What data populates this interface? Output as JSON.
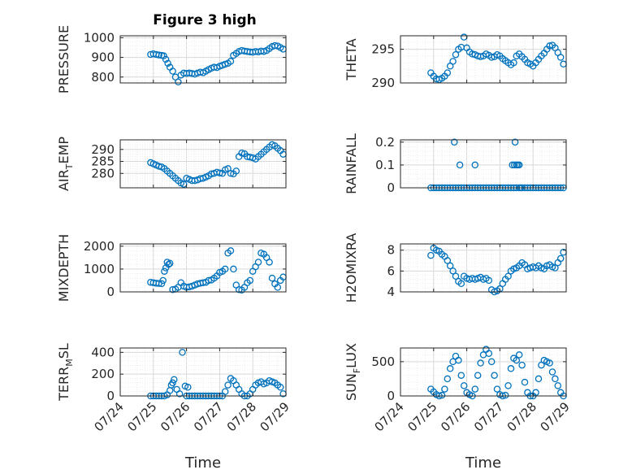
{
  "figure_title": "Figure 3 high",
  "colors": {
    "marker": "#0072BD",
    "axis": "#262626",
    "grid": "#d9d9d9",
    "minor_grid": "#ececec"
  },
  "chart_data": [
    {
      "type": "scatter",
      "ylabel": "PRESSURE",
      "title": "Figure 3 high",
      "xlabel": "",
      "ylim": [
        770,
        1010
      ],
      "yticks": [
        800,
        900,
        1000
      ],
      "ytick_labels": [
        "800",
        "900",
        "1000"
      ],
      "x": [
        "07/24 22:00",
        "07/25 00:00",
        "07/25 02:00",
        "07/25 04:00",
        "07/25 06:00",
        "07/25 07:30",
        "07/25 09:00",
        "07/25 10:30",
        "07/25 12:00",
        "07/25 14:00",
        "07/25 16:00",
        "07/25 18:00",
        "07/25 20:00",
        "07/25 22:00",
        "07/26 00:00",
        "07/26 02:00",
        "07/26 04:00",
        "07/26 06:00",
        "07/26 08:00",
        "07/26 10:00",
        "07/26 12:00",
        "07/26 14:00",
        "07/26 16:00",
        "07/26 18:00",
        "07/26 20:00",
        "07/26 22:00",
        "07/27 00:00",
        "07/27 02:00",
        "07/27 04:00",
        "07/27 06:00",
        "07/27 08:00",
        "07/27 10:00",
        "07/27 12:00",
        "07/27 14:00",
        "07/27 16:00",
        "07/27 18:00",
        "07/27 20:00",
        "07/27 22:00",
        "07/28 00:00",
        "07/28 02:00",
        "07/28 04:00",
        "07/28 06:00",
        "07/28 08:00",
        "07/28 10:00",
        "07/28 12:00",
        "07/28 14:00",
        "07/28 16:00",
        "07/28 18:00",
        "07/28 20:00",
        "07/28 22:00"
      ],
      "y": [
        915,
        918,
        915,
        912,
        910,
        908,
        890,
        870,
        850,
        830,
        800,
        775,
        810,
        820,
        818,
        820,
        818,
        815,
        820,
        825,
        822,
        830,
        838,
        845,
        850,
        848,
        855,
        860,
        865,
        870,
        880,
        910,
        920,
        930,
        935,
        932,
        930,
        928,
        926,
        930,
        928,
        932,
        930,
        935,
        945,
        955,
        960,
        958,
        950,
        942
      ]
    },
    {
      "type": "scatter",
      "ylabel": "THETA",
      "xlabel": "",
      "ylim": [
        290,
        297
      ],
      "yticks": [
        290,
        295
      ],
      "ytick_labels": [
        "290",
        "295"
      ],
      "x": [
        "07/24 22:00",
        "07/25 00:00",
        "07/25 02:00",
        "07/25 04:00",
        "07/25 06:00",
        "07/25 08:00",
        "07/25 10:00",
        "07/25 12:00",
        "07/25 14:00",
        "07/25 16:00",
        "07/25 18:00",
        "07/25 20:00",
        "07/25 22:00",
        "07/26 00:00",
        "07/26 02:00",
        "07/26 04:00",
        "07/26 06:00",
        "07/26 08:00",
        "07/26 10:00",
        "07/26 12:00",
        "07/26 14:00",
        "07/26 16:00",
        "07/26 18:00",
        "07/26 20:00",
        "07/26 22:00",
        "07/27 00:00",
        "07/27 02:00",
        "07/27 04:00",
        "07/27 06:00",
        "07/27 08:00",
        "07/27 10:00",
        "07/27 12:00",
        "07/27 14:00",
        "07/27 16:00",
        "07/27 18:00",
        "07/27 20:00",
        "07/27 22:00",
        "07/28 00:00",
        "07/28 02:00",
        "07/28 04:00",
        "07/28 06:00",
        "07/28 08:00",
        "07/28 10:00",
        "07/28 12:00",
        "07/28 14:00",
        "07/28 16:00",
        "07/28 18:00",
        "07/28 20:00",
        "07/28 22:00"
      ],
      "y": [
        291.5,
        291.0,
        290.6,
        290.5,
        290.7,
        291.0,
        291.5,
        292.5,
        293.2,
        294.2,
        295.0,
        295.3,
        296.8,
        295.2,
        294.6,
        294.3,
        294.2,
        294.0,
        293.9,
        294.0,
        294.3,
        294.1,
        293.8,
        293.9,
        294.2,
        294.0,
        293.6,
        293.3,
        293.0,
        292.7,
        293.0,
        294.0,
        294.3,
        293.9,
        293.5,
        293.0,
        292.8,
        292.5,
        293.0,
        293.5,
        294.0,
        294.4,
        295.0,
        295.5,
        295.6,
        295.2,
        294.5,
        293.8,
        292.8
      ]
    },
    {
      "type": "scatter",
      "ylabel": "AIR_TEMP",
      "ylabel_parts": [
        "AIR",
        "T",
        "EMP"
      ],
      "xlabel": "",
      "ylim": [
        274,
        294
      ],
      "yticks": [
        280,
        285,
        290
      ],
      "ytick_labels": [
        "280",
        "285",
        "290"
      ],
      "x": [
        "07/24 22:00",
        "07/25 00:00",
        "07/25 02:00",
        "07/25 04:00",
        "07/25 06:00",
        "07/25 08:00",
        "07/25 10:00",
        "07/25 12:00",
        "07/25 14:00",
        "07/25 16:00",
        "07/25 18:00",
        "07/25 20:00",
        "07/25 22:00",
        "07/26 00:00",
        "07/26 02:00",
        "07/26 04:00",
        "07/26 06:00",
        "07/26 08:00",
        "07/26 10:00",
        "07/26 12:00",
        "07/26 14:00",
        "07/26 16:00",
        "07/26 18:00",
        "07/26 20:00",
        "07/26 22:00",
        "07/27 00:00",
        "07/27 02:00",
        "07/27 04:00",
        "07/27 06:00",
        "07/27 08:00",
        "07/27 10:00",
        "07/27 12:00",
        "07/27 14:00",
        "07/27 16:00",
        "07/27 18:00",
        "07/27 20:00",
        "07/27 22:00",
        "07/28 00:00",
        "07/28 02:00",
        "07/28 04:00",
        "07/28 06:00",
        "07/28 08:00",
        "07/28 10:00",
        "07/28 12:00",
        "07/28 14:00",
        "07/28 16:00",
        "07/28 18:00",
        "07/28 20:00",
        "07/28 22:00"
      ],
      "y": [
        284.5,
        284.0,
        283.5,
        283.0,
        282.7,
        282.0,
        281.0,
        280.0,
        279.0,
        278.0,
        277.0,
        276.0,
        275.5,
        278.0,
        277.5,
        277.0,
        277.0,
        277.3,
        277.8,
        278.0,
        278.5,
        279.0,
        279.8,
        280.0,
        280.5,
        280.2,
        280.0,
        281.5,
        282.0,
        280.0,
        279.8,
        281.0,
        287.0,
        288.5,
        288.2,
        287.0,
        286.8,
        286.5,
        286.0,
        287.0,
        288.0,
        289.0,
        290.0,
        291.0,
        292.0,
        291.5,
        290.5,
        289.5,
        288.0
      ]
    },
    {
      "type": "scatter",
      "ylabel": "RAINFALL",
      "xlabel": "",
      "ylim": [
        0,
        0.21
      ],
      "yticks": [
        0,
        0.1,
        0.2
      ],
      "ytick_labels": [
        "0",
        "0.1",
        "0.2"
      ],
      "x": [
        "07/24 22:00",
        "07/25 00:00",
        "07/25 02:00",
        "07/25 04:00",
        "07/25 06:00",
        "07/25 08:00",
        "07/25 10:00",
        "07/25 12:00",
        "07/25 14:00",
        "07/25 16:00",
        "07/25 18:00",
        "07/25 20:00",
        "07/25 22:00",
        "07/26 00:00",
        "07/26 02:00",
        "07/26 04:00",
        "07/26 06:00",
        "07/26 08:00",
        "07/26 10:00",
        "07/26 12:00",
        "07/26 14:00",
        "07/26 16:00",
        "07/26 18:00",
        "07/26 20:00",
        "07/26 22:00",
        "07/27 00:00",
        "07/27 02:00",
        "07/27 04:00",
        "07/27 06:00",
        "07/27 08:00",
        "07/27 10:00",
        "07/27 12:00",
        "07/27 14:00",
        "07/27 16:00",
        "07/27 18:00",
        "07/27 20:00",
        "07/27 22:00",
        "07/28 00:00",
        "07/28 02:00",
        "07/28 04:00",
        "07/28 06:00",
        "07/28 08:00",
        "07/28 10:00",
        "07/28 12:00",
        "07/28 14:00",
        "07/28 16:00",
        "07/28 18:00",
        "07/28 20:00",
        "07/28 22:00",
        "07/25 15:00",
        "07/25 19:00",
        "07/26 06:00",
        "07/27 09:00",
        "07/27 10:30",
        "07/27 11:00",
        "07/27 12:00",
        "07/27 13:00",
        "07/27 14:00",
        "07/27 15:00"
      ],
      "y": [
        0,
        0,
        0,
        0,
        0,
        0,
        0,
        0,
        0,
        0,
        0,
        0,
        0,
        0,
        0,
        0,
        0,
        0,
        0,
        0,
        0,
        0,
        0,
        0,
        0,
        0,
        0,
        0,
        0,
        0,
        0,
        0,
        0,
        0,
        0,
        0,
        0,
        0,
        0,
        0,
        0,
        0,
        0,
        0,
        0,
        0,
        0,
        0,
        0,
        0.2,
        0.1,
        0.1,
        0.1,
        0.1,
        0.2,
        0.1,
        0.1,
        0.1,
        0
      ]
    },
    {
      "type": "scatter",
      "ylabel": "MIXDEPTH",
      "xlabel": "",
      "ylim": [
        0,
        2100
      ],
      "yticks": [
        0,
        1000,
        2000
      ],
      "ytick_labels": [
        "0",
        "1000",
        "2000"
      ],
      "x": [
        "07/24 22:00",
        "07/25 00:00",
        "07/25 02:00",
        "07/25 04:00",
        "07/25 06:00",
        "07/25 07:00",
        "07/25 08:00",
        "07/25 09:00",
        "07/25 10:00",
        "07/25 11:00",
        "07/25 12:00",
        "07/25 14:00",
        "07/25 16:00",
        "07/25 18:00",
        "07/25 20:00",
        "07/25 22:00",
        "07/26 00:00",
        "07/26 02:00",
        "07/26 04:00",
        "07/26 06:00",
        "07/26 08:00",
        "07/26 10:00",
        "07/26 12:00",
        "07/26 14:00",
        "07/26 16:00",
        "07/26 18:00",
        "07/26 20:00",
        "07/26 22:00",
        "07/27 00:00",
        "07/27 02:00",
        "07/27 04:00",
        "07/27 06:00",
        "07/27 08:00",
        "07/27 10:00",
        "07/27 12:00",
        "07/27 14:00",
        "07/27 16:00",
        "07/27 18:00",
        "07/27 20:00",
        "07/27 22:00",
        "07/28 00:00",
        "07/28 02:00",
        "07/28 04:00",
        "07/28 06:00",
        "07/28 08:00",
        "07/28 10:00",
        "07/28 12:00",
        "07/28 14:00",
        "07/28 16:00",
        "07/28 18:00",
        "07/28 20:00",
        "07/28 22:00"
      ],
      "y": [
        420,
        400,
        380,
        370,
        360,
        500,
        900,
        1050,
        1300,
        1200,
        1250,
        100,
        120,
        200,
        400,
        250,
        200,
        220,
        250,
        300,
        350,
        380,
        400,
        420,
        500,
        520,
        600,
        700,
        850,
        900,
        1000,
        1700,
        1800,
        1000,
        300,
        100,
        80,
        200,
        400,
        500,
        900,
        1100,
        1300,
        1700,
        1650,
        1500,
        1300,
        600,
        350,
        200,
        500,
        650
      ]
    },
    {
      "type": "scatter",
      "ylabel": "H2OMIXRA",
      "xlabel": "",
      "ylim": [
        4,
        8.6
      ],
      "yticks": [
        4,
        6,
        8
      ],
      "ytick_labels": [
        "4",
        "6",
        "8"
      ],
      "x": [
        "07/24 22:00",
        "07/25 00:00",
        "07/25 02:00",
        "07/25 04:00",
        "07/25 06:00",
        "07/25 08:00",
        "07/25 10:00",
        "07/25 12:00",
        "07/25 14:00",
        "07/25 16:00",
        "07/25 18:00",
        "07/25 20:00",
        "07/25 22:00",
        "07/26 00:00",
        "07/26 02:00",
        "07/26 04:00",
        "07/26 06:00",
        "07/26 08:00",
        "07/26 10:00",
        "07/26 12:00",
        "07/26 14:00",
        "07/26 16:00",
        "07/26 18:00",
        "07/26 20:00",
        "07/26 22:00",
        "07/27 00:00",
        "07/27 02:00",
        "07/27 04:00",
        "07/27 06:00",
        "07/27 08:00",
        "07/27 10:00",
        "07/27 12:00",
        "07/27 14:00",
        "07/27 16:00",
        "07/27 18:00",
        "07/27 20:00",
        "07/27 22:00",
        "07/28 00:00",
        "07/28 02:00",
        "07/28 04:00",
        "07/28 06:00",
        "07/28 08:00",
        "07/28 10:00",
        "07/28 12:00",
        "07/28 14:00",
        "07/28 16:00",
        "07/28 18:00",
        "07/28 20:00",
        "07/28 22:00"
      ],
      "y": [
        7.5,
        8.2,
        8.0,
        7.9,
        7.6,
        7.4,
        7.0,
        6.5,
        6.0,
        5.5,
        5.0,
        4.8,
        5.5,
        5.3,
        5.2,
        5.3,
        5.2,
        5.3,
        5.4,
        5.2,
        5.3,
        5.1,
        4.2,
        4.0,
        4.1,
        4.3,
        4.8,
        5.2,
        5.5,
        6.0,
        6.2,
        6.3,
        6.5,
        6.8,
        6.6,
        6.2,
        6.3,
        6.4,
        6.3,
        6.5,
        6.3,
        6.2,
        6.5,
        6.6,
        6.4,
        6.3,
        6.8,
        7.2,
        7.8
      ]
    },
    {
      "type": "scatter",
      "ylabel": "TERR_MSL",
      "ylabel_parts": [
        "TERR",
        "M",
        "SL"
      ],
      "xlabel": "Time",
      "ylim": [
        0,
        440
      ],
      "yticks": [
        0,
        200,
        400
      ],
      "ytick_labels": [
        "0",
        "200",
        "400"
      ],
      "xtick_labels": [
        "07/24",
        "07/25",
        "07/26",
        "07/27",
        "07/28",
        "07/29"
      ],
      "x": [
        "07/24 22:00",
        "07/25 00:00",
        "07/25 02:00",
        "07/25 04:00",
        "07/25 06:00",
        "07/25 08:00",
        "07/25 10:00",
        "07/25 12:00",
        "07/25 13:00",
        "07/25 14:00",
        "07/25 15:00",
        "07/25 17:00",
        "07/25 19:00",
        "07/25 21:00",
        "07/26 00:00",
        "07/26 02:00",
        "07/26 04:00",
        "07/26 06:00",
        "07/26 08:00",
        "07/26 10:00",
        "07/26 12:00",
        "07/26 14:00",
        "07/26 16:00",
        "07/26 18:00",
        "07/26 20:00",
        "07/26 22:00",
        "07/27 00:00",
        "07/27 02:00",
        "07/27 04:00",
        "07/27 06:00",
        "07/27 08:00",
        "07/27 10:00",
        "07/27 12:00",
        "07/27 14:00",
        "07/27 16:00",
        "07/27 18:00",
        "07/27 20:00",
        "07/27 22:00",
        "07/28 00:00",
        "07/28 02:00",
        "07/28 04:00",
        "07/28 06:00",
        "07/28 08:00",
        "07/28 10:00",
        "07/28 12:00",
        "07/28 14:00",
        "07/28 16:00",
        "07/28 18:00",
        "07/28 20:00",
        "07/28 22:00",
        "07/26 01:00",
        "07/25 23:00"
      ],
      "y": [
        0,
        0,
        0,
        0,
        0,
        0,
        10,
        50,
        100,
        120,
        150,
        60,
        20,
        400,
        0,
        0,
        0,
        0,
        0,
        0,
        0,
        0,
        0,
        0,
        0,
        0,
        0,
        0,
        40,
        100,
        160,
        140,
        100,
        60,
        20,
        0,
        0,
        20,
        60,
        100,
        120,
        130,
        110,
        120,
        140,
        130,
        120,
        100,
        80,
        20,
        80,
        90
      ]
    },
    {
      "type": "scatter",
      "ylabel": "SUN_FLUX",
      "ylabel_parts": [
        "SUN",
        "F",
        "LUX"
      ],
      "xlabel": "Time",
      "ylim": [
        0,
        700
      ],
      "yticks": [
        0,
        500
      ],
      "ytick_labels": [
        "0",
        "500"
      ],
      "xtick_labels": [
        "07/24",
        "07/25",
        "07/26",
        "07/27",
        "07/28",
        "07/29"
      ],
      "x": [
        "07/24 22:00",
        "07/25 00:00",
        "07/25 02:00",
        "07/25 04:00",
        "07/25 06:00",
        "07/25 08:00",
        "07/25 10:00",
        "07/25 12:00",
        "07/25 14:00",
        "07/25 16:00",
        "07/25 18:00",
        "07/25 20:00",
        "07/25 22:00",
        "07/26 00:00",
        "07/26 02:00",
        "07/26 04:00",
        "07/26 06:00",
        "07/26 08:00",
        "07/26 10:00",
        "07/26 12:00",
        "07/26 14:00",
        "07/26 16:00",
        "07/26 18:00",
        "07/26 20:00",
        "07/26 22:00",
        "07/27 00:00",
        "07/27 02:00",
        "07/27 04:00",
        "07/27 06:00",
        "07/27 08:00",
        "07/27 10:00",
        "07/27 12:00",
        "07/27 14:00",
        "07/27 16:00",
        "07/27 18:00",
        "07/27 20:00",
        "07/27 22:00",
        "07/28 00:00",
        "07/28 02:00",
        "07/28 04:00",
        "07/28 06:00",
        "07/28 08:00",
        "07/28 10:00",
        "07/28 12:00",
        "07/28 14:00",
        "07/28 16:00",
        "07/28 18:00",
        "07/28 20:00",
        "07/28 22:00"
      ],
      "y": [
        100,
        60,
        20,
        0,
        10,
        100,
        250,
        400,
        500,
        580,
        520,
        300,
        150,
        50,
        20,
        0,
        100,
        300,
        480,
        600,
        680,
        620,
        500,
        300,
        100,
        20,
        0,
        10,
        150,
        400,
        550,
        520,
        600,
        450,
        200,
        50,
        0,
        0,
        50,
        250,
        450,
        520,
        500,
        480,
        350,
        250,
        150,
        50,
        0
      ]
    }
  ]
}
